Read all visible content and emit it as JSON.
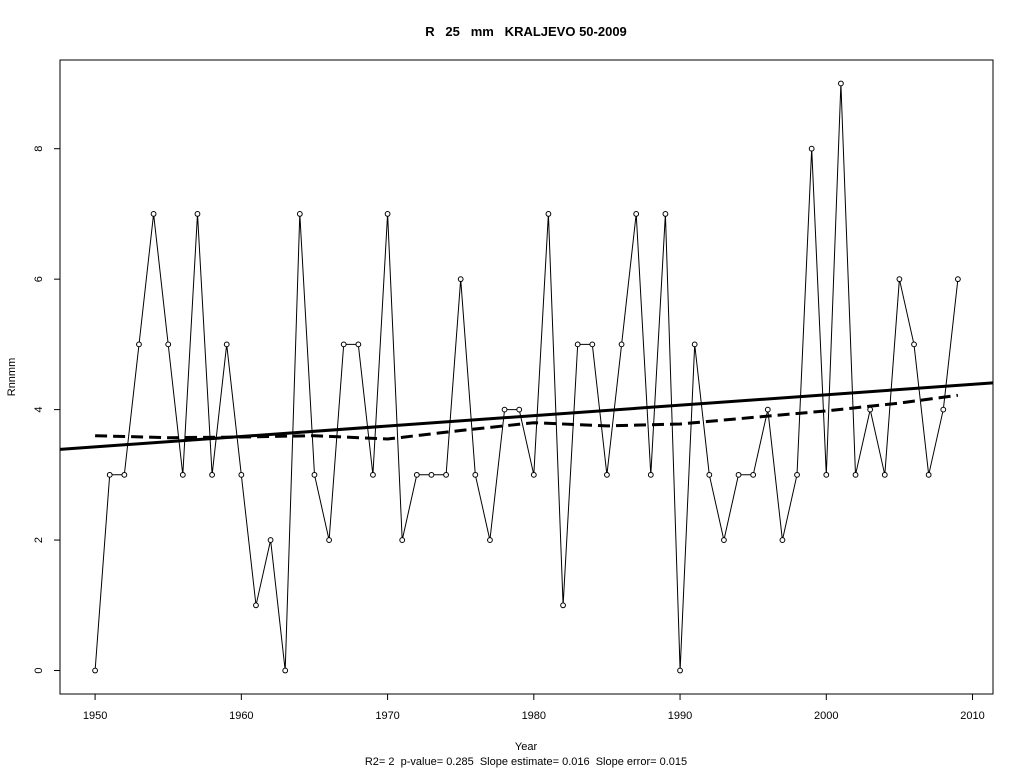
{
  "chart_data": {
    "type": "line",
    "title": "R   25   mm   KRALJEVO 50-2009",
    "xlabel": "Year",
    "ylabel": "Rnnmm",
    "footer": "R2= 2  p-value= 0.285  Slope estimate= 0.016  Slope error= 0.015",
    "xlim": [
      1947.6,
      2011.4
    ],
    "ylim": [
      -0.36,
      9.36
    ],
    "x_ticks": [
      1950,
      1960,
      1970,
      1980,
      1990,
      2000,
      2010
    ],
    "y_ticks": [
      0,
      2,
      4,
      6,
      8
    ],
    "x_tick_labels": [
      "1950",
      "1960",
      "1970",
      "1980",
      "1990",
      "2000",
      "2010"
    ],
    "y_tick_labels": [
      "0",
      "2",
      "4",
      "6",
      "8"
    ],
    "grid": false,
    "series": [
      {
        "values_x": [
          1950,
          1951,
          1952,
          1953,
          1954,
          1955,
          1956,
          1957,
          1958,
          1959,
          1960,
          1961,
          1962,
          1963,
          1964,
          1965,
          1966,
          1967,
          1968,
          1969,
          1970,
          1971,
          1972,
          1973,
          1974,
          1975,
          1976,
          1977,
          1978,
          1979,
          1980,
          1981,
          1982,
          1983,
          1984,
          1985,
          1986,
          1987,
          1988,
          1989,
          1990,
          1991,
          1992,
          1993,
          1994,
          1995,
          1996,
          1997,
          1998,
          1999,
          2000,
          2001,
          2002,
          2003,
          2004,
          2005,
          2006,
          2007,
          2008,
          2009
        ],
        "values_y": [
          0,
          3,
          3,
          5,
          7,
          5,
          3,
          7,
          3,
          5,
          3,
          1,
          2,
          0,
          7,
          3,
          2,
          5,
          5,
          3,
          7,
          2,
          3,
          3,
          3,
          6,
          3,
          2,
          4,
          4,
          3,
          7,
          1,
          5,
          5,
          3,
          5,
          7,
          3,
          7,
          0,
          5,
          3,
          2,
          3,
          3,
          4,
          2,
          3,
          8,
          3,
          9,
          3,
          4,
          3,
          6,
          5,
          3,
          4,
          6
        ]
      }
    ],
    "trend_line": {
      "x": [
        1947.6,
        2011.4
      ],
      "y": [
        3.39,
        4.41
      ]
    },
    "smooth_line": {
      "x": [
        1950,
        1955,
        1960,
        1965,
        1970,
        1975,
        1980,
        1985,
        1990,
        1995,
        2000,
        2005,
        2009
      ],
      "y": [
        3.6,
        3.57,
        3.58,
        3.6,
        3.55,
        3.68,
        3.8,
        3.75,
        3.78,
        3.88,
        3.98,
        4.1,
        4.22
      ]
    }
  }
}
